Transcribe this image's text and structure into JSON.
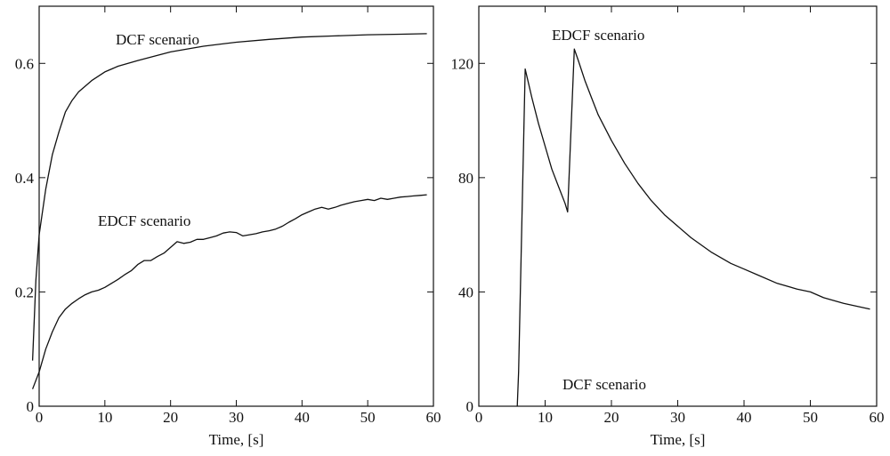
{
  "chart_data": [
    {
      "type": "line",
      "title": "",
      "xlabel": "Time, [s]",
      "ylabel": "",
      "xlim": [
        0,
        60
      ],
      "ylim": [
        0,
        0.7
      ],
      "xticks": [
        0,
        10,
        20,
        30,
        40,
        50,
        60
      ],
      "xtick_labels": [
        "0",
        "10",
        "20",
        "30",
        "40",
        "50",
        "60"
      ],
      "yticks": [
        0,
        0.2,
        0.4,
        0.6
      ],
      "ytick_labels": [
        "0",
        "0.2",
        "0.4",
        "0.6"
      ],
      "grid": false,
      "annotations": [
        "DCF scenario",
        "EDCF scenario"
      ],
      "series": [
        {
          "x": [
            -1,
            -0.5,
            0,
            1,
            2,
            3,
            4,
            5,
            6,
            8,
            10,
            12,
            15,
            20,
            25,
            30,
            35,
            40,
            45,
            50,
            55,
            59
          ],
          "y": [
            0.08,
            0.22,
            0.3,
            0.38,
            0.44,
            0.48,
            0.515,
            0.535,
            0.55,
            0.57,
            0.585,
            0.595,
            0.605,
            0.62,
            0.63,
            0.637,
            0.642,
            0.646,
            0.648,
            0.65,
            0.651,
            0.652
          ]
        },
        {
          "x": [
            -1,
            0,
            1,
            2,
            3,
            4,
            5,
            6,
            7,
            8,
            9,
            10,
            11,
            12,
            13,
            14,
            15,
            16,
            17,
            18,
            19,
            20,
            21,
            22,
            23,
            24,
            25,
            26,
            27,
            28,
            29,
            30,
            31,
            32,
            33,
            34,
            35,
            36,
            37,
            38,
            39,
            40,
            41,
            42,
            43,
            44,
            45,
            46,
            47,
            48,
            49,
            50,
            51,
            52,
            53,
            54,
            55,
            56,
            57,
            58,
            59
          ],
          "y": [
            0.03,
            0.06,
            0.1,
            0.13,
            0.155,
            0.17,
            0.18,
            0.188,
            0.195,
            0.2,
            0.203,
            0.208,
            0.215,
            0.222,
            0.23,
            0.237,
            0.248,
            0.255,
            0.255,
            0.262,
            0.268,
            0.278,
            0.288,
            0.285,
            0.287,
            0.292,
            0.292,
            0.295,
            0.298,
            0.303,
            0.305,
            0.304,
            0.298,
            0.3,
            0.302,
            0.305,
            0.307,
            0.31,
            0.315,
            0.322,
            0.328,
            0.335,
            0.34,
            0.345,
            0.348,
            0.345,
            0.348,
            0.352,
            0.355,
            0.358,
            0.36,
            0.362,
            0.36,
            0.364,
            0.362,
            0.364,
            0.366,
            0.367,
            0.368,
            0.369,
            0.37
          ]
        }
      ]
    },
    {
      "type": "line",
      "title": "",
      "xlabel": "Time, [s]",
      "ylabel": "",
      "xlim": [
        0,
        60
      ],
      "ylim": [
        0,
        140
      ],
      "xticks": [
        0,
        10,
        20,
        30,
        40,
        50,
        60
      ],
      "xtick_labels": [
        "0",
        "10",
        "20",
        "30",
        "40",
        "50",
        "60"
      ],
      "yticks": [
        0,
        40,
        80,
        120
      ],
      "ytick_labels": [
        "0",
        "40",
        "80",
        "120"
      ],
      "grid": false,
      "annotations": [
        "EDCF scenario",
        "DCF scenario"
      ],
      "series": [
        {
          "x": [
            5.8,
            6.0,
            7.0,
            8.0,
            9.0,
            10.0,
            11.0,
            12.0,
            13.0,
            13.4,
            14.4,
            15,
            16,
            17,
            18,
            20,
            22,
            24,
            26,
            28,
            30,
            32,
            35,
            38,
            40,
            42,
            45,
            48,
            50,
            52,
            55,
            57,
            59
          ],
          "y": [
            0,
            12,
            118,
            108,
            99,
            91,
            83,
            77,
            71,
            68,
            125,
            121,
            114,
            108,
            102,
            93,
            85,
            78,
            72,
            67,
            63,
            59,
            54,
            50,
            48,
            46,
            43,
            41,
            40,
            38,
            36,
            35,
            34
          ]
        }
      ]
    }
  ]
}
